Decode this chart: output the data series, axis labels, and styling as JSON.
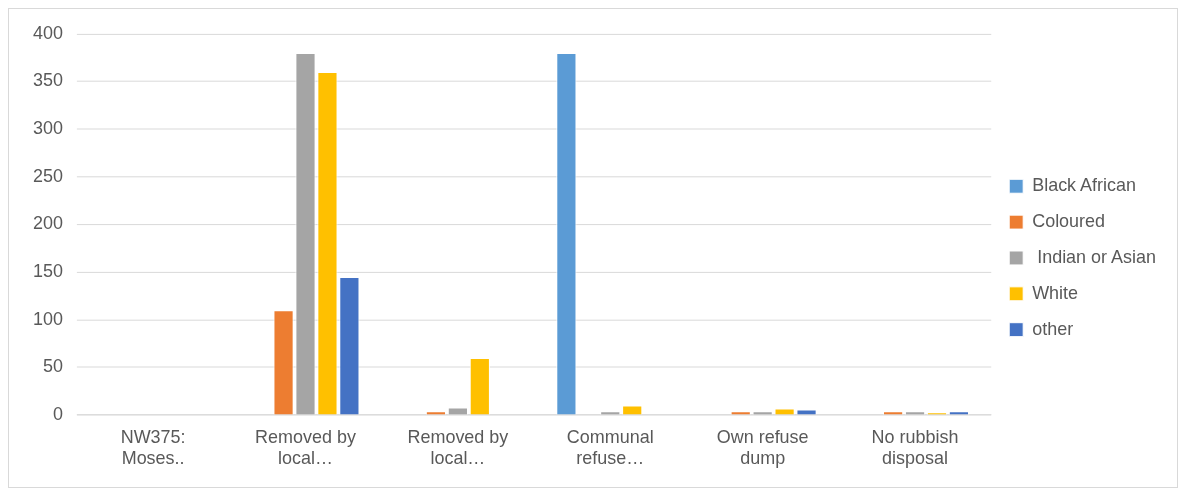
{
  "chart_data": {
    "type": "bar",
    "categories": [
      "NW375: Moses..",
      "Removed by local…",
      "Removed by local…",
      "Communal refuse…",
      "Own refuse dump",
      "No rubbish disposal"
    ],
    "series": [
      {
        "name": "Black African",
        "color": "#5b9bd5",
        "values": [
          0,
          0,
          0,
          380,
          0,
          0
        ]
      },
      {
        "name": "Coloured",
        "color": "#ed7d31",
        "values": [
          0,
          110,
          4,
          0,
          4,
          4
        ]
      },
      {
        "name": " Indian or Asian",
        "color": "#a5a5a5",
        "values": [
          0,
          380,
          8,
          4,
          4,
          4
        ]
      },
      {
        "name": "White",
        "color": "#ffc000",
        "values": [
          0,
          360,
          60,
          10,
          7,
          3
        ]
      },
      {
        "name": "other",
        "color": "#4472c4",
        "values": [
          0,
          145,
          0,
          0,
          6,
          4
        ]
      }
    ],
    "ylim": [
      0,
      400
    ],
    "yticks": [
      0,
      50,
      100,
      150,
      200,
      250,
      300,
      350,
      400
    ],
    "grid": "y",
    "legend": "right"
  }
}
